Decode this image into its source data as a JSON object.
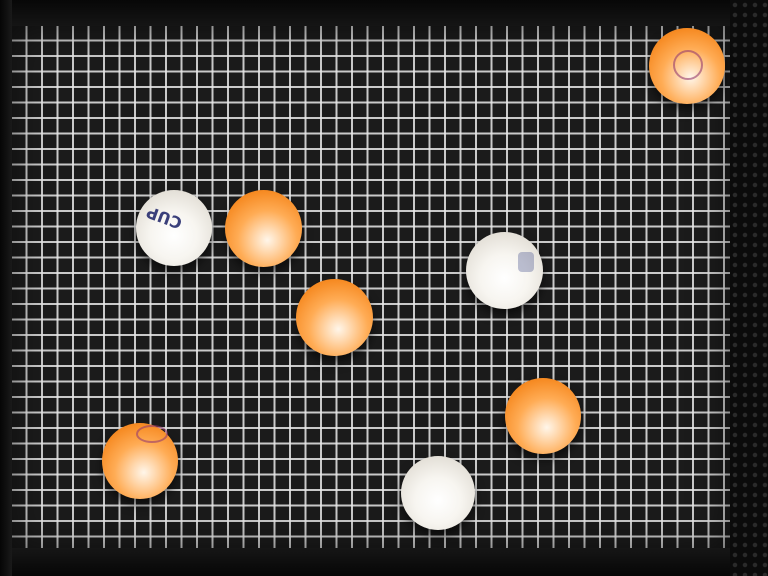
{
  "scene": {
    "description_colors": {
      "background": "#0a0a0a",
      "grid_line": "#e8e8e8",
      "orange_ball": "#f68a22",
      "white_ball": "#f7f5f0"
    }
  },
  "balls": [
    {
      "name": "orange-ball-top-right",
      "color": "orange"
    },
    {
      "name": "white-ball-cup-logo",
      "color": "white",
      "logo_text": "CUP"
    },
    {
      "name": "orange-ball-upper-left",
      "color": "orange"
    },
    {
      "name": "white-ball-center-right",
      "color": "white"
    },
    {
      "name": "orange-ball-center",
      "color": "orange"
    },
    {
      "name": "orange-ball-right",
      "color": "orange"
    },
    {
      "name": "orange-ball-bottom-left",
      "color": "orange"
    },
    {
      "name": "white-ball-bottom-center",
      "color": "white"
    }
  ]
}
